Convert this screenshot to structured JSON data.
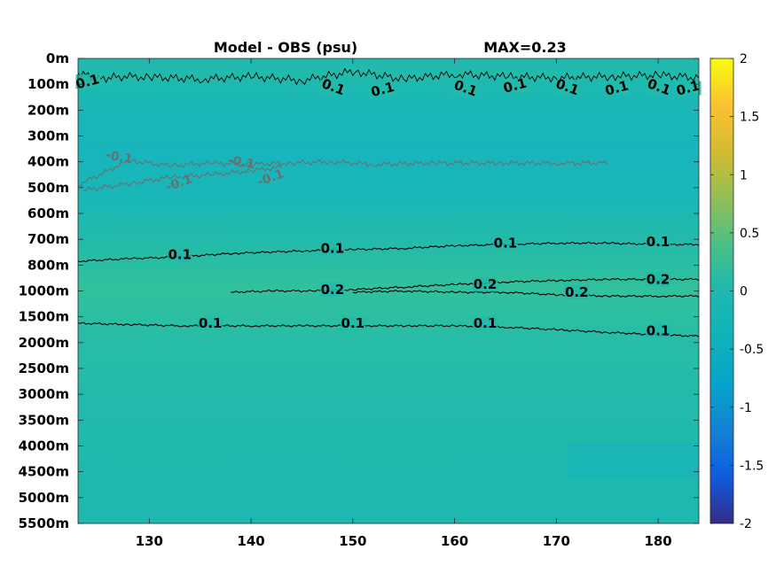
{
  "chart_data": {
    "type": "heatmap",
    "title": "Model - OBS (psu)",
    "max_label": "MAX=0.23",
    "x_ticks": [
      "130",
      "140",
      "150",
      "160",
      "170",
      "180"
    ],
    "x_tick_values": [
      130,
      140,
      150,
      160,
      170,
      180
    ],
    "xlim": [
      123,
      184
    ],
    "y_tick_labels": [
      "0m",
      "100m",
      "200m",
      "300m",
      "400m",
      "500m",
      "600m",
      "700m",
      "800m",
      "1000m",
      "1500m",
      "2000m",
      "2500m",
      "3000m",
      "3500m",
      "4000m",
      "4500m",
      "5000m",
      "5500m"
    ],
    "colorbar": {
      "min": -2,
      "max": 2,
      "ticks": [
        "2",
        "1.5",
        "1",
        "0.5",
        "0",
        "-0.5",
        "-1",
        "-1.5",
        "-2"
      ],
      "tick_values": [
        2,
        1.5,
        1,
        0.5,
        0,
        -0.5,
        -1,
        -1.5,
        -2
      ],
      "colormap": "parula"
    },
    "field_colors": {
      "near_zero": "#1bb7b8",
      "slightly_positive": "#26bca5",
      "positive_0.2": "#33c19a"
    },
    "contours": [
      {
        "level": 0.1,
        "color": "#000000",
        "depth": "100m",
        "points": [
          [
            123,
            0.55
          ],
          [
            125,
            0.8
          ],
          [
            127,
            0.7
          ],
          [
            130,
            0.72
          ],
          [
            135,
            0.8
          ],
          [
            140,
            0.7
          ],
          [
            145,
            0.85
          ],
          [
            150,
            0.5
          ],
          [
            155,
            0.8
          ],
          [
            160,
            0.6
          ],
          [
            165,
            0.7
          ],
          [
            170,
            0.75
          ],
          [
            175,
            0.7
          ],
          [
            180,
            0.65
          ],
          [
            184,
            0.75
          ]
        ],
        "labels": [
          {
            "x": 124,
            "y": 1.0,
            "text": "0.1"
          },
          {
            "x": 148,
            "y": 1.2,
            "text": "0.1"
          },
          {
            "x": 153,
            "y": 1.3,
            "text": "0.1"
          },
          {
            "x": 161,
            "y": 1.25,
            "text": "0.1"
          },
          {
            "x": 166,
            "y": 1.15,
            "text": "0.1"
          },
          {
            "x": 171,
            "y": 1.2,
            "text": "0.1"
          },
          {
            "x": 176,
            "y": 1.25,
            "text": "0.1"
          },
          {
            "x": 180,
            "y": 1.2,
            "text": "0.1"
          },
          {
            "x": 183,
            "y": 1.25,
            "text": "0.1"
          }
        ]
      },
      {
        "level": -0.1,
        "color": "#6a6f72",
        "depth": "400m-500m",
        "points": [
          [
            123,
            4.9
          ],
          [
            128,
            3.95
          ],
          [
            132,
            4.15
          ],
          [
            136,
            4.05
          ],
          [
            140,
            4.1
          ],
          [
            144,
            4.05
          ],
          [
            148,
            4.0
          ],
          [
            152,
            4.1
          ],
          [
            158,
            4.05
          ],
          [
            164,
            4.05
          ],
          [
            170,
            4.05
          ],
          [
            175,
            4.05
          ],
          [
            123.5,
            5.1
          ],
          [
            128,
            4.85
          ],
          [
            132,
            4.6
          ],
          [
            136,
            4.5
          ],
          [
            140,
            4.35
          ],
          [
            143,
            4.2
          ]
        ],
        "labels": [
          {
            "x": 127,
            "y": 3.9,
            "text": "-0.1"
          },
          {
            "x": 133,
            "y": 4.9,
            "text": "-0.1"
          },
          {
            "x": 139,
            "y": 4.1,
            "text": "-0.1"
          },
          {
            "x": 142,
            "y": 4.7,
            "text": "-0.1"
          }
        ]
      },
      {
        "level": 0.1,
        "color": "#000000",
        "depth": "800m",
        "points": [
          [
            123,
            7.85
          ],
          [
            128,
            7.75
          ],
          [
            132,
            7.7
          ],
          [
            138,
            7.55
          ],
          [
            145,
            7.45
          ],
          [
            150,
            7.4
          ],
          [
            155,
            7.35
          ],
          [
            160,
            7.25
          ],
          [
            165,
            7.2
          ],
          [
            170,
            7.15
          ],
          [
            175,
            7.15
          ],
          [
            180,
            7.2
          ],
          [
            184,
            7.2
          ]
        ],
        "labels": [
          {
            "x": 133,
            "y": 7.7,
            "text": "0.1"
          },
          {
            "x": 148,
            "y": 7.45,
            "text": "0.1"
          },
          {
            "x": 165,
            "y": 7.25,
            "text": "0.1"
          },
          {
            "x": 180,
            "y": 7.2,
            "text": "0.1"
          }
        ]
      },
      {
        "level": 0.2,
        "color": "#000000",
        "depth": "1000m",
        "points": [
          [
            138,
            9.05
          ],
          [
            142,
            9.0
          ],
          [
            146,
            9.0
          ],
          [
            150,
            8.95
          ],
          [
            155,
            8.85
          ],
          [
            160,
            8.75
          ],
          [
            165,
            8.65
          ],
          [
            170,
            8.6
          ],
          [
            175,
            8.55
          ],
          [
            180,
            8.55
          ],
          [
            184,
            8.55
          ],
          [
            150,
            9.05
          ],
          [
            155,
            9.0
          ],
          [
            160,
            9.05
          ],
          [
            165,
            9.05
          ],
          [
            170,
            9.15
          ],
          [
            175,
            9.2
          ],
          [
            180,
            9.2
          ],
          [
            184,
            9.2
          ]
        ],
        "labels": [
          {
            "x": 148,
            "y": 9.05,
            "text": "0.2"
          },
          {
            "x": 163,
            "y": 8.85,
            "text": "0.2"
          },
          {
            "x": 172,
            "y": 9.15,
            "text": "0.2"
          },
          {
            "x": 180,
            "y": 8.65,
            "text": "0.2"
          }
        ]
      },
      {
        "level": 0.1,
        "color": "#000000",
        "depth": "1500m-2000m",
        "points": [
          [
            123,
            10.25
          ],
          [
            128,
            10.3
          ],
          [
            133,
            10.35
          ],
          [
            140,
            10.35
          ],
          [
            145,
            10.35
          ],
          [
            150,
            10.35
          ],
          [
            155,
            10.35
          ],
          [
            160,
            10.35
          ],
          [
            165,
            10.4
          ],
          [
            170,
            10.5
          ],
          [
            175,
            10.6
          ],
          [
            180,
            10.7
          ],
          [
            184,
            10.75
          ]
        ],
        "labels": [
          {
            "x": 136,
            "y": 10.35,
            "text": "0.1"
          },
          {
            "x": 150,
            "y": 10.35,
            "text": "0.1"
          },
          {
            "x": 163,
            "y": 10.35,
            "text": "0.1"
          },
          {
            "x": 180,
            "y": 10.65,
            "text": "0.1"
          }
        ]
      }
    ]
  }
}
